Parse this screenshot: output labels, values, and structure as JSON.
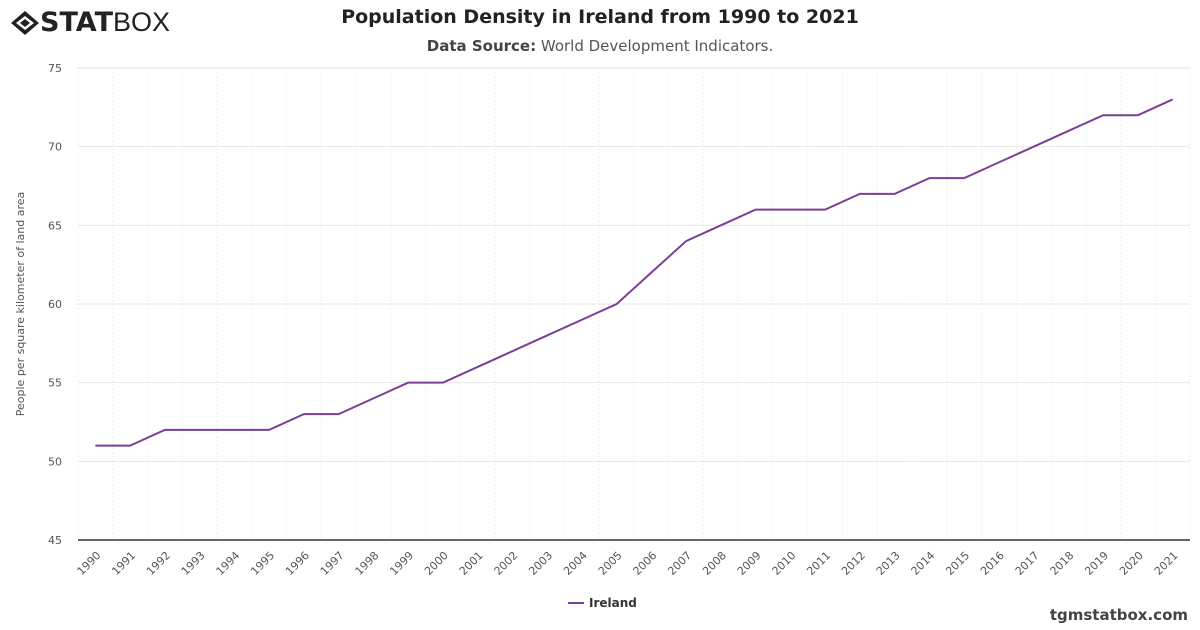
{
  "logo": {
    "bold": "STAT",
    "light": "BOX"
  },
  "credit": "tgmstatbox.com",
  "colors": {
    "series": "#7b3f98",
    "grid": "#e6e6e6",
    "axis": "#333333"
  },
  "chart_data": {
    "type": "line",
    "title": "Population Density in Ireland from 1990 to 2021",
    "subtitle_label": "Data Source:",
    "subtitle": "World Development Indicators.",
    "ylabel": "People per square kilometer of land area",
    "xlabel": "",
    "ylim": [
      45,
      75
    ],
    "yticks": [
      45,
      50,
      55,
      60,
      65,
      70,
      75
    ],
    "grid": true,
    "legend": "bottom-center",
    "categories": [
      "1990",
      "1991",
      "1992",
      "1993",
      "1994",
      "1995",
      "1996",
      "1997",
      "1998",
      "1999",
      "2000",
      "2001",
      "2002",
      "2003",
      "2004",
      "2005",
      "2006",
      "2007",
      "2008",
      "2009",
      "2010",
      "2011",
      "2012",
      "2013",
      "2014",
      "2015",
      "2016",
      "2017",
      "2018",
      "2019",
      "2020",
      "2021"
    ],
    "series": [
      {
        "name": "Ireland",
        "values": [
          51,
          51,
          52,
          52,
          52,
          52,
          53,
          53,
          54,
          55,
          55,
          56,
          57,
          58,
          59,
          60,
          62,
          64,
          65,
          66,
          66,
          66,
          67,
          67,
          68,
          68,
          69,
          70,
          71,
          72,
          72,
          73
        ]
      }
    ]
  }
}
